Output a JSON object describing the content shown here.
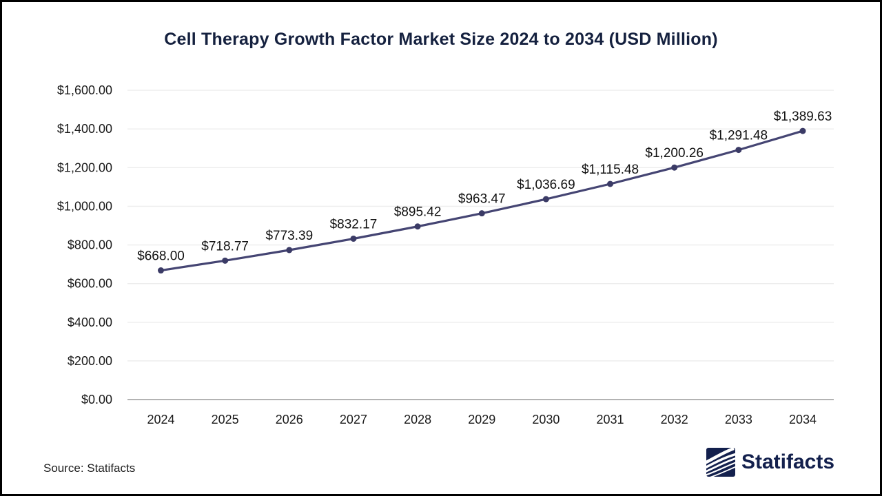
{
  "chart_data": {
    "type": "line",
    "title": "Cell Therapy Growth Factor Market Size 2024 to 2034 (USD Million)",
    "xlabel": "",
    "ylabel": "",
    "categories": [
      "2024",
      "2025",
      "2026",
      "2027",
      "2028",
      "2029",
      "2030",
      "2031",
      "2032",
      "2033",
      "2034"
    ],
    "values": [
      668.0,
      718.77,
      773.39,
      832.17,
      895.42,
      963.47,
      1036.69,
      1115.48,
      1200.26,
      1291.48,
      1389.63
    ],
    "point_labels": [
      "$668.00",
      "$718.77",
      "$773.39",
      "$832.17",
      "$895.42",
      "$963.47",
      "$1,036.69",
      "$1,115.48",
      "$1,200.26",
      "$1,291.48",
      "$1,389.63"
    ],
    "y_ticks": [
      {
        "value": 0,
        "label": "$0.00"
      },
      {
        "value": 200,
        "label": "$200.00"
      },
      {
        "value": 400,
        "label": "$400.00"
      },
      {
        "value": 600,
        "label": "$600.00"
      },
      {
        "value": 800,
        "label": "$800.00"
      },
      {
        "value": 1000,
        "label": "$1,000.00"
      },
      {
        "value": 1200,
        "label": "$1,200.00"
      },
      {
        "value": 1400,
        "label": "$1,400.00"
      },
      {
        "value": 1600,
        "label": "$1,600.00"
      }
    ],
    "ylim": [
      0,
      1600
    ],
    "grid": true,
    "legend": "none"
  },
  "colors": {
    "title": "#15213f",
    "line": "#454573",
    "marker": "#3b3b66",
    "gridline": "#ededed",
    "zero_line": "#b3b3b3",
    "axis_text": "#1a1a1a",
    "data_label": "#111111",
    "brand_navy": "#13204d"
  },
  "footer": {
    "source": "Source: Statifacts",
    "brand": "Statifacts"
  }
}
